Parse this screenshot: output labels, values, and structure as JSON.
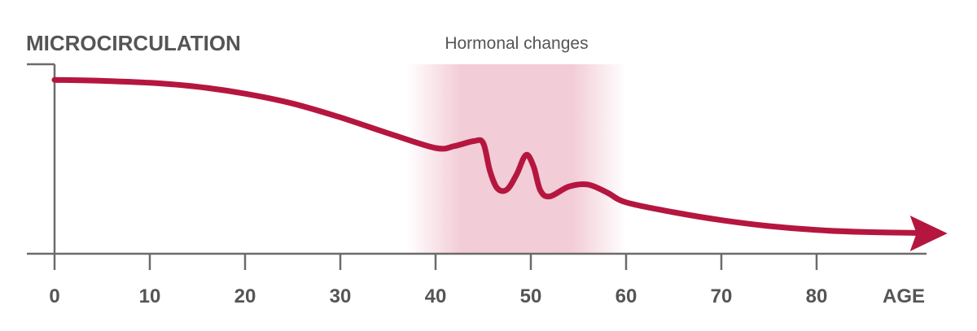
{
  "chart_data": {
    "type": "line",
    "ylabel": "MICROCIRCULATION",
    "xlabel": "AGE",
    "xlim": [
      0,
      90
    ],
    "ylim": [
      0,
      100
    ],
    "ticks": [
      0,
      10,
      20,
      30,
      40,
      50,
      60,
      70,
      80
    ],
    "tick_labels": [
      "0",
      "10",
      "20",
      "30",
      "40",
      "50",
      "60",
      "70",
      "80"
    ],
    "grid": false,
    "band": {
      "label": "Hormonal changes",
      "from": 37,
      "to": 60
    },
    "series": [
      {
        "color": "#b5163f",
        "x": [
          0,
          5,
          10,
          15,
          20,
          25,
          30,
          35,
          40,
          42,
          44,
          45,
          45.7,
          46.5,
          47.5,
          48.5,
          49.5,
          50.3,
          51,
          52,
          54,
          56,
          58,
          60,
          65,
          70,
          75,
          80,
          85,
          91
        ],
        "y": [
          88,
          87.5,
          86.5,
          84.5,
          81,
          76,
          69,
          61,
          53.5,
          54.5,
          57,
          56,
          42,
          33,
          32.5,
          40,
          50,
          44,
          32,
          29,
          34,
          35,
          31,
          26,
          21,
          17,
          14,
          12,
          11,
          10.5
        ]
      }
    ],
    "band_color": "#e8a2b4",
    "axis_color": "#6b6b6b"
  }
}
